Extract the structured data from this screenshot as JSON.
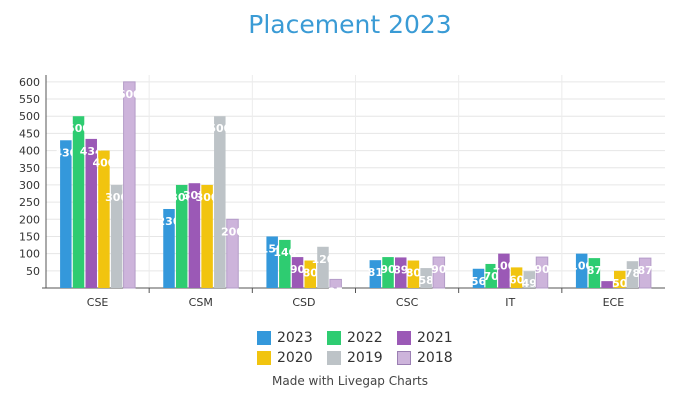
{
  "chart_data": {
    "type": "bar",
    "title": "Placement 2023",
    "categories": [
      "CSE",
      "CSM",
      "CSD",
      "CSC",
      "IT",
      "ECE"
    ],
    "series": [
      {
        "name": "2023",
        "color": "#3498db",
        "values": [
          430,
          230,
          150,
          81,
          56,
          100
        ]
      },
      {
        "name": "2022",
        "color": "#2ecc71",
        "values": [
          500,
          300,
          140,
          90,
          70,
          87
        ]
      },
      {
        "name": "2021",
        "color": "#9b59b6",
        "values": [
          434,
          305,
          90,
          89,
          100,
          20
        ]
      },
      {
        "name": "2020",
        "color": "#f1c40f",
        "values": [
          400,
          300,
          80,
          80,
          60,
          50
        ]
      },
      {
        "name": "2019",
        "color": "#bdc3c7",
        "values": [
          300,
          500,
          120,
          58,
          49,
          78
        ]
      },
      {
        "name": "2018",
        "color": "#cdb4db",
        "values": [
          600,
          200,
          25,
          90,
          90,
          87
        ]
      }
    ],
    "y_ticks": [
      50,
      100,
      150,
      200,
      250,
      300,
      350,
      400,
      450,
      500,
      550,
      600
    ],
    "ylim": [
      0,
      620
    ],
    "grid": true,
    "legend_position": "bottom"
  },
  "credit": "Made with Livegap Charts"
}
